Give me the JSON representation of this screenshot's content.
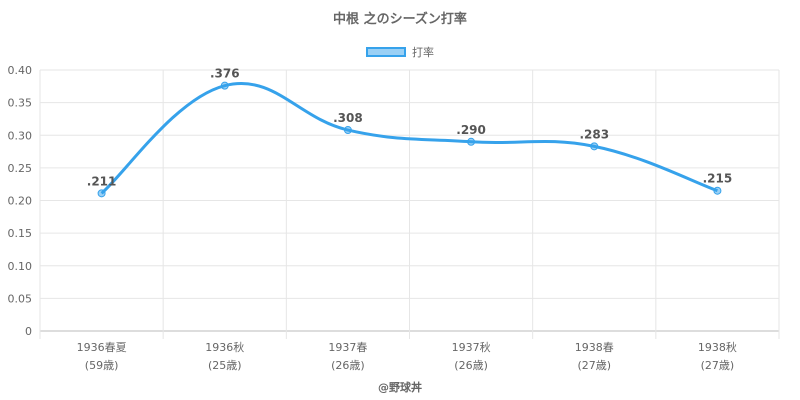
{
  "chart_data": {
    "type": "line",
    "title": "中根 之のシーズン打率",
    "categories": [
      "1936春夏",
      "1936秋",
      "1937春",
      "1937秋",
      "1938春",
      "1938秋"
    ],
    "ages": [
      "(59歳)",
      "(25歳)",
      "(26歳)",
      "(26歳)",
      "(27歳)",
      "(27歳)"
    ],
    "series": [
      {
        "name": "打率",
        "values": [
          0.211,
          0.376,
          0.308,
          0.29,
          0.283,
          0.215
        ],
        "labels": [
          ".211",
          ".376",
          ".308",
          ".290",
          ".283",
          ".215"
        ]
      }
    ],
    "yticks": [
      "0",
      "0.05",
      "0.10",
      "0.15",
      "0.20",
      "0.25",
      "0.30",
      "0.35",
      "0.40"
    ],
    "ylim": [
      0,
      0.4
    ],
    "grid": true,
    "legend_position": "top",
    "line_color": "#36a2eb",
    "fill_color": "rgba(54,162,235,0.5)"
  },
  "credit": "@野球丼"
}
